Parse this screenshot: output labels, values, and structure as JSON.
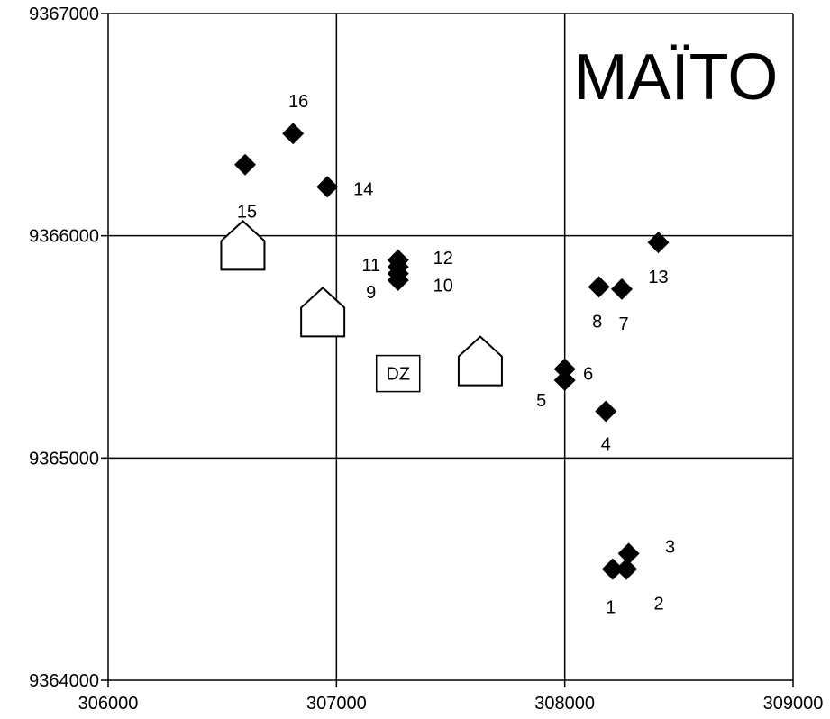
{
  "title": "MAÏTO",
  "chart_data": {
    "type": "scatter",
    "title": "MAÏTO",
    "xlim": [
      306000,
      309000
    ],
    "ylim": [
      9364000,
      9367000
    ],
    "x_ticks": [
      306000,
      307000,
      308000,
      309000
    ],
    "y_ticks": [
      9364000,
      9365000,
      9366000,
      9367000
    ],
    "x_tick_labels": [
      "306000",
      "307000",
      "308000",
      "309000"
    ],
    "y_tick_labels": [
      "9364000",
      "9365000",
      "9366000",
      "9367000"
    ],
    "grid": true,
    "marker": "diamond",
    "points": [
      {
        "label": "1",
        "x": 308210,
        "y": 9364500
      },
      {
        "label": "2",
        "x": 308270,
        "y": 9364500
      },
      {
        "label": "3",
        "x": 308280,
        "y": 9364570
      },
      {
        "label": "4",
        "x": 308180,
        "y": 9365210
      },
      {
        "label": "5",
        "x": 308000,
        "y": 9365350
      },
      {
        "label": "6",
        "x": 308000,
        "y": 9365400
      },
      {
        "label": "7",
        "x": 308250,
        "y": 9365760
      },
      {
        "label": "8",
        "x": 308150,
        "y": 9365770
      },
      {
        "label": "9",
        "x": 307270,
        "y": 9365800
      },
      {
        "label": "10",
        "x": 307270,
        "y": 9365830
      },
      {
        "label": "11",
        "x": 307270,
        "y": 9365860
      },
      {
        "label": "12",
        "x": 307270,
        "y": 9365890
      },
      {
        "label": "13",
        "x": 308410,
        "y": 9365970
      },
      {
        "label": "14",
        "x": 306960,
        "y": 9366220
      },
      {
        "label": "15",
        "x": 306600,
        "y": 9366320
      },
      {
        "label": "16",
        "x": 306810,
        "y": 9366460
      }
    ],
    "houses": [
      {
        "x": 306590,
        "y": 9365920
      },
      {
        "x": 306940,
        "y": 9365620
      },
      {
        "x": 307630,
        "y": 9365400
      }
    ],
    "dz_marker": {
      "label": "DZ",
      "x": 307270,
      "y": 9365380
    }
  }
}
